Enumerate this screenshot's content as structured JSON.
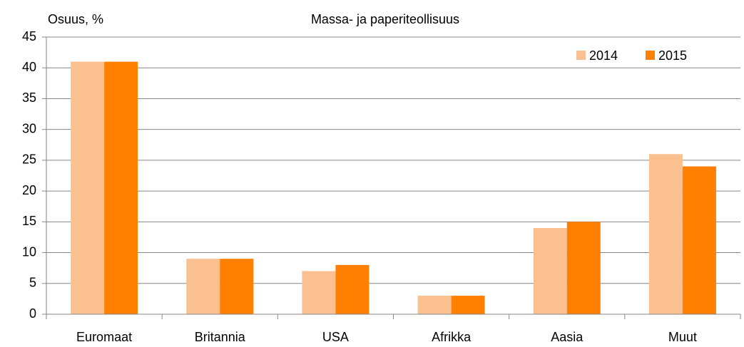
{
  "chart_data": {
    "type": "bar",
    "title": "Massa- ja paperiteollisuus",
    "ylabel": "Osuus, %",
    "categories": [
      "Euromaat",
      "Britannia",
      "USA",
      "Afrikka",
      "Aasia",
      "Muut"
    ],
    "series": [
      {
        "name": "2014",
        "color": "#fac090",
        "values": [
          41,
          9,
          7,
          3,
          14,
          26
        ]
      },
      {
        "name": "2015",
        "color": "#ff8000",
        "values": [
          41,
          9,
          8,
          3,
          15,
          24
        ]
      }
    ],
    "ylim": [
      0,
      45
    ],
    "yticks": [
      0,
      5,
      10,
      15,
      20,
      25,
      30,
      35,
      40,
      45
    ],
    "grid": true,
    "legend": "upper right"
  }
}
